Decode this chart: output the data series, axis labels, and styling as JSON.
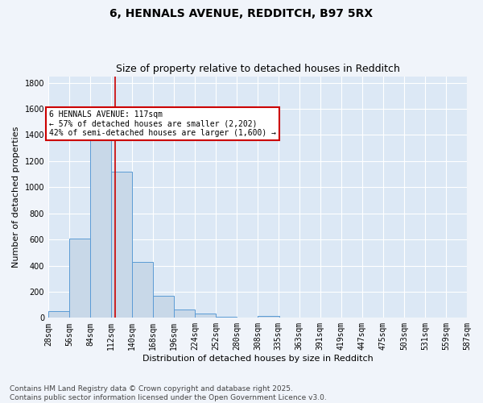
{
  "title1": "6, HENNALS AVENUE, REDDITCH, B97 5RX",
  "title2": "Size of property relative to detached houses in Redditch",
  "xlabel": "Distribution of detached houses by size in Redditch",
  "ylabel": "Number of detached properties",
  "bar_color": "#c8d8e8",
  "bar_edge_color": "#5b9bd5",
  "background_color": "#dce8f5",
  "grid_color": "#ffffff",
  "property_line_x": 117,
  "annotation_text": "6 HENNALS AVENUE: 117sqm\n← 57% of detached houses are smaller (2,202)\n42% of semi-detached houses are larger (1,600) →",
  "annotation_box_color": "#ffffff",
  "annotation_box_edge": "#cc0000",
  "vline_color": "#cc0000",
  "bin_edges": [
    28,
    56,
    84,
    112,
    140,
    168,
    196,
    224,
    252,
    280,
    308,
    335,
    363,
    391,
    419,
    447,
    475,
    503,
    531,
    559,
    587
  ],
  "bin_labels": [
    "28sqm",
    "56sqm",
    "84sqm",
    "112sqm",
    "140sqm",
    "168sqm",
    "196sqm",
    "224sqm",
    "252sqm",
    "280sqm",
    "308sqm",
    "335sqm",
    "363sqm",
    "391sqm",
    "419sqm",
    "447sqm",
    "475sqm",
    "503sqm",
    "531sqm",
    "559sqm",
    "587sqm"
  ],
  "bar_heights": [
    50,
    605,
    1360,
    1120,
    430,
    170,
    65,
    35,
    10,
    0,
    15,
    0,
    0,
    0,
    0,
    0,
    0,
    0,
    0,
    0
  ],
  "ylim": [
    0,
    1850
  ],
  "yticks": [
    0,
    200,
    400,
    600,
    800,
    1000,
    1200,
    1400,
    1600,
    1800
  ],
  "footer_text": "Contains HM Land Registry data © Crown copyright and database right 2025.\nContains public sector information licensed under the Open Government Licence v3.0.",
  "title_fontsize": 10,
  "subtitle_fontsize": 9,
  "axis_label_fontsize": 8,
  "tick_fontsize": 7,
  "footer_fontsize": 6.5,
  "fig_bg": "#f0f4fa"
}
